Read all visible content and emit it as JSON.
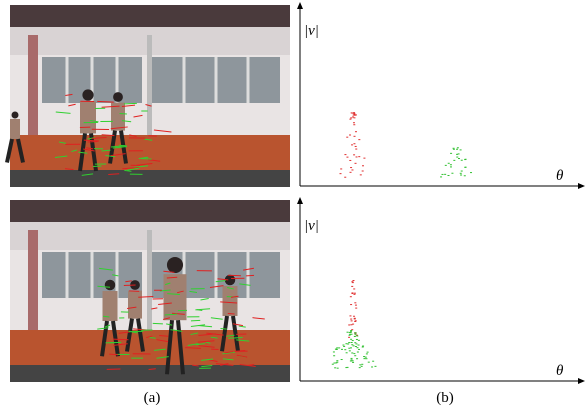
{
  "figure": {
    "plots": [
      {
        "y_axis_label": "|v|",
        "x_axis_label": "θ"
      },
      {
        "y_axis_label": "|v|",
        "x_axis_label": "θ"
      }
    ],
    "captions": [
      "(a)",
      "(b)"
    ]
  }
}
